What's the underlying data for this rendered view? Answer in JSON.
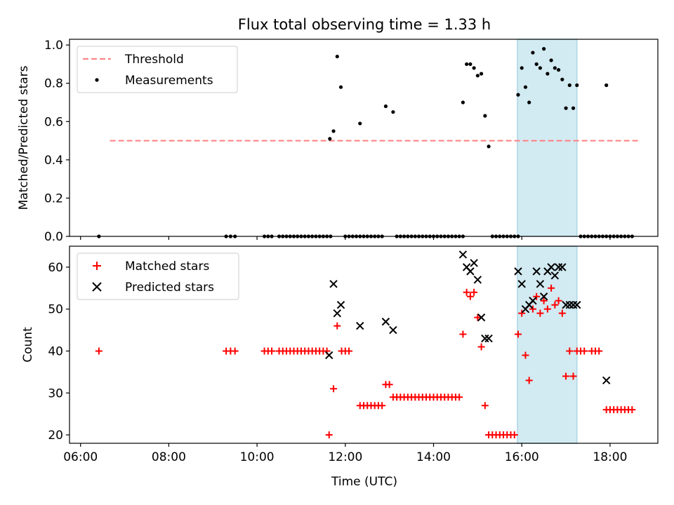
{
  "figure": {
    "title": "Flux total observing time = 1.33 h",
    "xlabel": "Time (UTC)"
  },
  "chart_data": [
    {
      "type": "scatter",
      "ylabel": "Matched/Predicted stars",
      "xlim": [
        "05:45",
        "19:05"
      ],
      "ylim": [
        0,
        1.03
      ],
      "yticks": [
        0.0,
        0.2,
        0.4,
        0.6,
        0.8,
        1.0
      ],
      "legend_position": "top-left",
      "highlight_span": {
        "start": "15:54",
        "end": "17:15",
        "color": "#add8e6"
      },
      "threshold": {
        "name": "Threshold",
        "value": 0.5,
        "x_start": "06:40",
        "x_end": "18:40",
        "color": "#ff7f7f",
        "style": "dashed"
      },
      "series": [
        {
          "name": "Measurements",
          "color": "#000000",
          "marker": "dot",
          "points": [
            [
              "06:25",
              0.0
            ],
            [
              "09:18",
              0.0
            ],
            [
              "09:24",
              0.0
            ],
            [
              "09:30",
              0.0
            ],
            [
              "10:10",
              0.0
            ],
            [
              "10:15",
              0.0
            ],
            [
              "10:20",
              0.0
            ],
            [
              "10:30",
              0.0
            ],
            [
              "10:35",
              0.0
            ],
            [
              "10:40",
              0.0
            ],
            [
              "10:45",
              0.0
            ],
            [
              "10:50",
              0.0
            ],
            [
              "10:55",
              0.0
            ],
            [
              "11:00",
              0.0
            ],
            [
              "11:05",
              0.0
            ],
            [
              "11:10",
              0.0
            ],
            [
              "11:15",
              0.0
            ],
            [
              "11:20",
              0.0
            ],
            [
              "11:25",
              0.0
            ],
            [
              "11:30",
              0.0
            ],
            [
              "11:35",
              0.0
            ],
            [
              "11:40",
              0.0
            ],
            [
              "11:39",
              0.51
            ],
            [
              "11:44",
              0.55
            ],
            [
              "11:49",
              0.94
            ],
            [
              "11:54",
              0.78
            ],
            [
              "12:00",
              0.0
            ],
            [
              "12:05",
              0.0
            ],
            [
              "12:10",
              0.0
            ],
            [
              "12:15",
              0.0
            ],
            [
              "12:20",
              0.0
            ],
            [
              "12:25",
              0.0
            ],
            [
              "12:30",
              0.0
            ],
            [
              "12:35",
              0.0
            ],
            [
              "12:40",
              0.0
            ],
            [
              "12:45",
              0.0
            ],
            [
              "12:50",
              0.0
            ],
            [
              "12:20",
              0.59
            ],
            [
              "12:55",
              0.68
            ],
            [
              "13:05",
              0.65
            ],
            [
              "13:10",
              0.0
            ],
            [
              "13:15",
              0.0
            ],
            [
              "13:20",
              0.0
            ],
            [
              "13:25",
              0.0
            ],
            [
              "13:30",
              0.0
            ],
            [
              "13:35",
              0.0
            ],
            [
              "13:40",
              0.0
            ],
            [
              "13:45",
              0.0
            ],
            [
              "13:50",
              0.0
            ],
            [
              "13:55",
              0.0
            ],
            [
              "14:00",
              0.0
            ],
            [
              "14:05",
              0.0
            ],
            [
              "14:10",
              0.0
            ],
            [
              "14:15",
              0.0
            ],
            [
              "14:20",
              0.0
            ],
            [
              "14:25",
              0.0
            ],
            [
              "14:30",
              0.0
            ],
            [
              "14:35",
              0.0
            ],
            [
              "14:40",
              0.0
            ],
            [
              "14:40",
              0.7
            ],
            [
              "14:45",
              0.9
            ],
            [
              "14:50",
              0.9
            ],
            [
              "14:55",
              0.88
            ],
            [
              "15:00",
              0.84
            ],
            [
              "15:05",
              0.85
            ],
            [
              "15:10",
              0.63
            ],
            [
              "15:15",
              0.47
            ],
            [
              "15:20",
              0.0
            ],
            [
              "15:25",
              0.0
            ],
            [
              "15:30",
              0.0
            ],
            [
              "15:35",
              0.0
            ],
            [
              "15:40",
              0.0
            ],
            [
              "15:45",
              0.0
            ],
            [
              "15:50",
              0.0
            ],
            [
              "15:55",
              0.0
            ],
            [
              "15:55",
              0.74
            ],
            [
              "16:00",
              0.88
            ],
            [
              "16:05",
              0.78
            ],
            [
              "16:10",
              0.7
            ],
            [
              "16:15",
              0.96
            ],
            [
              "16:20",
              0.9
            ],
            [
              "16:25",
              0.88
            ],
            [
              "16:30",
              0.98
            ],
            [
              "16:35",
              0.85
            ],
            [
              "16:40",
              0.92
            ],
            [
              "16:45",
              0.88
            ],
            [
              "16:50",
              0.87
            ],
            [
              "16:55",
              0.82
            ],
            [
              "17:00",
              0.67
            ],
            [
              "17:05",
              0.79
            ],
            [
              "17:10",
              0.67
            ],
            [
              "17:15",
              0.79
            ],
            [
              "17:20",
              0.0
            ],
            [
              "17:25",
              0.0
            ],
            [
              "17:30",
              0.0
            ],
            [
              "17:35",
              0.0
            ],
            [
              "17:40",
              0.0
            ],
            [
              "17:45",
              0.0
            ],
            [
              "17:50",
              0.0
            ],
            [
              "17:55",
              0.0
            ],
            [
              "18:00",
              0.0
            ],
            [
              "18:05",
              0.0
            ],
            [
              "18:10",
              0.0
            ],
            [
              "18:15",
              0.0
            ],
            [
              "18:20",
              0.0
            ],
            [
              "18:25",
              0.0
            ],
            [
              "18:30",
              0.0
            ],
            [
              "17:55",
              0.79
            ]
          ]
        }
      ]
    },
    {
      "type": "scatter",
      "ylabel": "Count",
      "xlim": [
        "05:45",
        "19:05"
      ],
      "ylim": [
        18,
        65
      ],
      "yticks": [
        20,
        30,
        40,
        50,
        60
      ],
      "xticks": [
        "06:00",
        "08:00",
        "10:00",
        "12:00",
        "14:00",
        "16:00",
        "18:00"
      ],
      "legend_position": "top-left",
      "highlight_span": {
        "start": "15:54",
        "end": "17:15",
        "color": "#add8e6"
      },
      "series": [
        {
          "name": "Matched stars",
          "color": "#ff0000",
          "marker": "plus",
          "points": [
            [
              "06:25",
              40
            ],
            [
              "09:18",
              40
            ],
            [
              "09:24",
              40
            ],
            [
              "09:30",
              40
            ],
            [
              "10:10",
              40
            ],
            [
              "10:15",
              40
            ],
            [
              "10:20",
              40
            ],
            [
              "10:30",
              40
            ],
            [
              "10:35",
              40
            ],
            [
              "10:40",
              40
            ],
            [
              "10:45",
              40
            ],
            [
              "10:50",
              40
            ],
            [
              "10:55",
              40
            ],
            [
              "11:00",
              40
            ],
            [
              "11:05",
              40
            ],
            [
              "11:10",
              40
            ],
            [
              "11:15",
              40
            ],
            [
              "11:20",
              40
            ],
            [
              "11:25",
              40
            ],
            [
              "11:30",
              40
            ],
            [
              "11:35",
              40
            ],
            [
              "11:38",
              20
            ],
            [
              "11:44",
              31
            ],
            [
              "11:49",
              46
            ],
            [
              "11:55",
              40
            ],
            [
              "12:00",
              40
            ],
            [
              "12:05",
              40
            ],
            [
              "12:20",
              27
            ],
            [
              "12:25",
              27
            ],
            [
              "12:30",
              27
            ],
            [
              "12:35",
              27
            ],
            [
              "12:40",
              27
            ],
            [
              "12:45",
              27
            ],
            [
              "12:50",
              27
            ],
            [
              "12:55",
              32
            ],
            [
              "13:00",
              32
            ],
            [
              "13:05",
              29
            ],
            [
              "13:10",
              29
            ],
            [
              "13:15",
              29
            ],
            [
              "13:20",
              29
            ],
            [
              "13:25",
              29
            ],
            [
              "13:30",
              29
            ],
            [
              "13:35",
              29
            ],
            [
              "13:40",
              29
            ],
            [
              "13:45",
              29
            ],
            [
              "13:50",
              29
            ],
            [
              "13:55",
              29
            ],
            [
              "14:00",
              29
            ],
            [
              "14:05",
              29
            ],
            [
              "14:10",
              29
            ],
            [
              "14:15",
              29
            ],
            [
              "14:20",
              29
            ],
            [
              "14:25",
              29
            ],
            [
              "14:30",
              29
            ],
            [
              "14:35",
              29
            ],
            [
              "14:40",
              44
            ],
            [
              "14:45",
              54
            ],
            [
              "14:50",
              53
            ],
            [
              "14:55",
              54
            ],
            [
              "15:00",
              48
            ],
            [
              "15:05",
              41
            ],
            [
              "15:10",
              27
            ],
            [
              "15:15",
              20
            ],
            [
              "15:20",
              20
            ],
            [
              "15:25",
              20
            ],
            [
              "15:30",
              20
            ],
            [
              "15:35",
              20
            ],
            [
              "15:40",
              20
            ],
            [
              "15:45",
              20
            ],
            [
              "15:50",
              20
            ],
            [
              "15:55",
              44
            ],
            [
              "16:00",
              49
            ],
            [
              "16:05",
              39
            ],
            [
              "16:10",
              33
            ],
            [
              "16:15",
              50
            ],
            [
              "16:20",
              53
            ],
            [
              "16:25",
              49
            ],
            [
              "16:30",
              52
            ],
            [
              "16:35",
              50
            ],
            [
              "16:40",
              55
            ],
            [
              "16:45",
              51
            ],
            [
              "16:50",
              52
            ],
            [
              "16:55",
              49
            ],
            [
              "17:00",
              34
            ],
            [
              "17:05",
              40
            ],
            [
              "17:10",
              34
            ],
            [
              "17:15",
              40
            ],
            [
              "17:20",
              40
            ],
            [
              "17:25",
              40
            ],
            [
              "17:35",
              40
            ],
            [
              "17:40",
              40
            ],
            [
              "17:45",
              40
            ],
            [
              "17:55",
              26
            ],
            [
              "18:00",
              26
            ],
            [
              "18:05",
              26
            ],
            [
              "18:10",
              26
            ],
            [
              "18:15",
              26
            ],
            [
              "18:20",
              26
            ],
            [
              "18:25",
              26
            ],
            [
              "18:30",
              26
            ]
          ]
        },
        {
          "name": "Predicted stars",
          "color": "#000000",
          "marker": "x",
          "points": [
            [
              "11:38",
              39
            ],
            [
              "11:44",
              56
            ],
            [
              "11:49",
              49
            ],
            [
              "11:54",
              51
            ],
            [
              "12:20",
              46
            ],
            [
              "12:55",
              47
            ],
            [
              "13:05",
              45
            ],
            [
              "14:40",
              63
            ],
            [
              "14:45",
              60
            ],
            [
              "14:50",
              59
            ],
            [
              "14:55",
              61
            ],
            [
              "15:00",
              57
            ],
            [
              "15:05",
              48
            ],
            [
              "15:10",
              43
            ],
            [
              "15:15",
              43
            ],
            [
              "15:55",
              59
            ],
            [
              "16:00",
              56
            ],
            [
              "16:05",
              50
            ],
            [
              "16:10",
              51
            ],
            [
              "16:15",
              52
            ],
            [
              "16:20",
              59
            ],
            [
              "16:25",
              56
            ],
            [
              "16:30",
              53
            ],
            [
              "16:35",
              59
            ],
            [
              "16:40",
              60
            ],
            [
              "16:45",
              58
            ],
            [
              "16:50",
              60
            ],
            [
              "16:55",
              60
            ],
            [
              "17:00",
              51
            ],
            [
              "17:05",
              51
            ],
            [
              "17:10",
              51
            ],
            [
              "17:15",
              51
            ],
            [
              "17:55",
              33
            ]
          ]
        }
      ]
    }
  ]
}
